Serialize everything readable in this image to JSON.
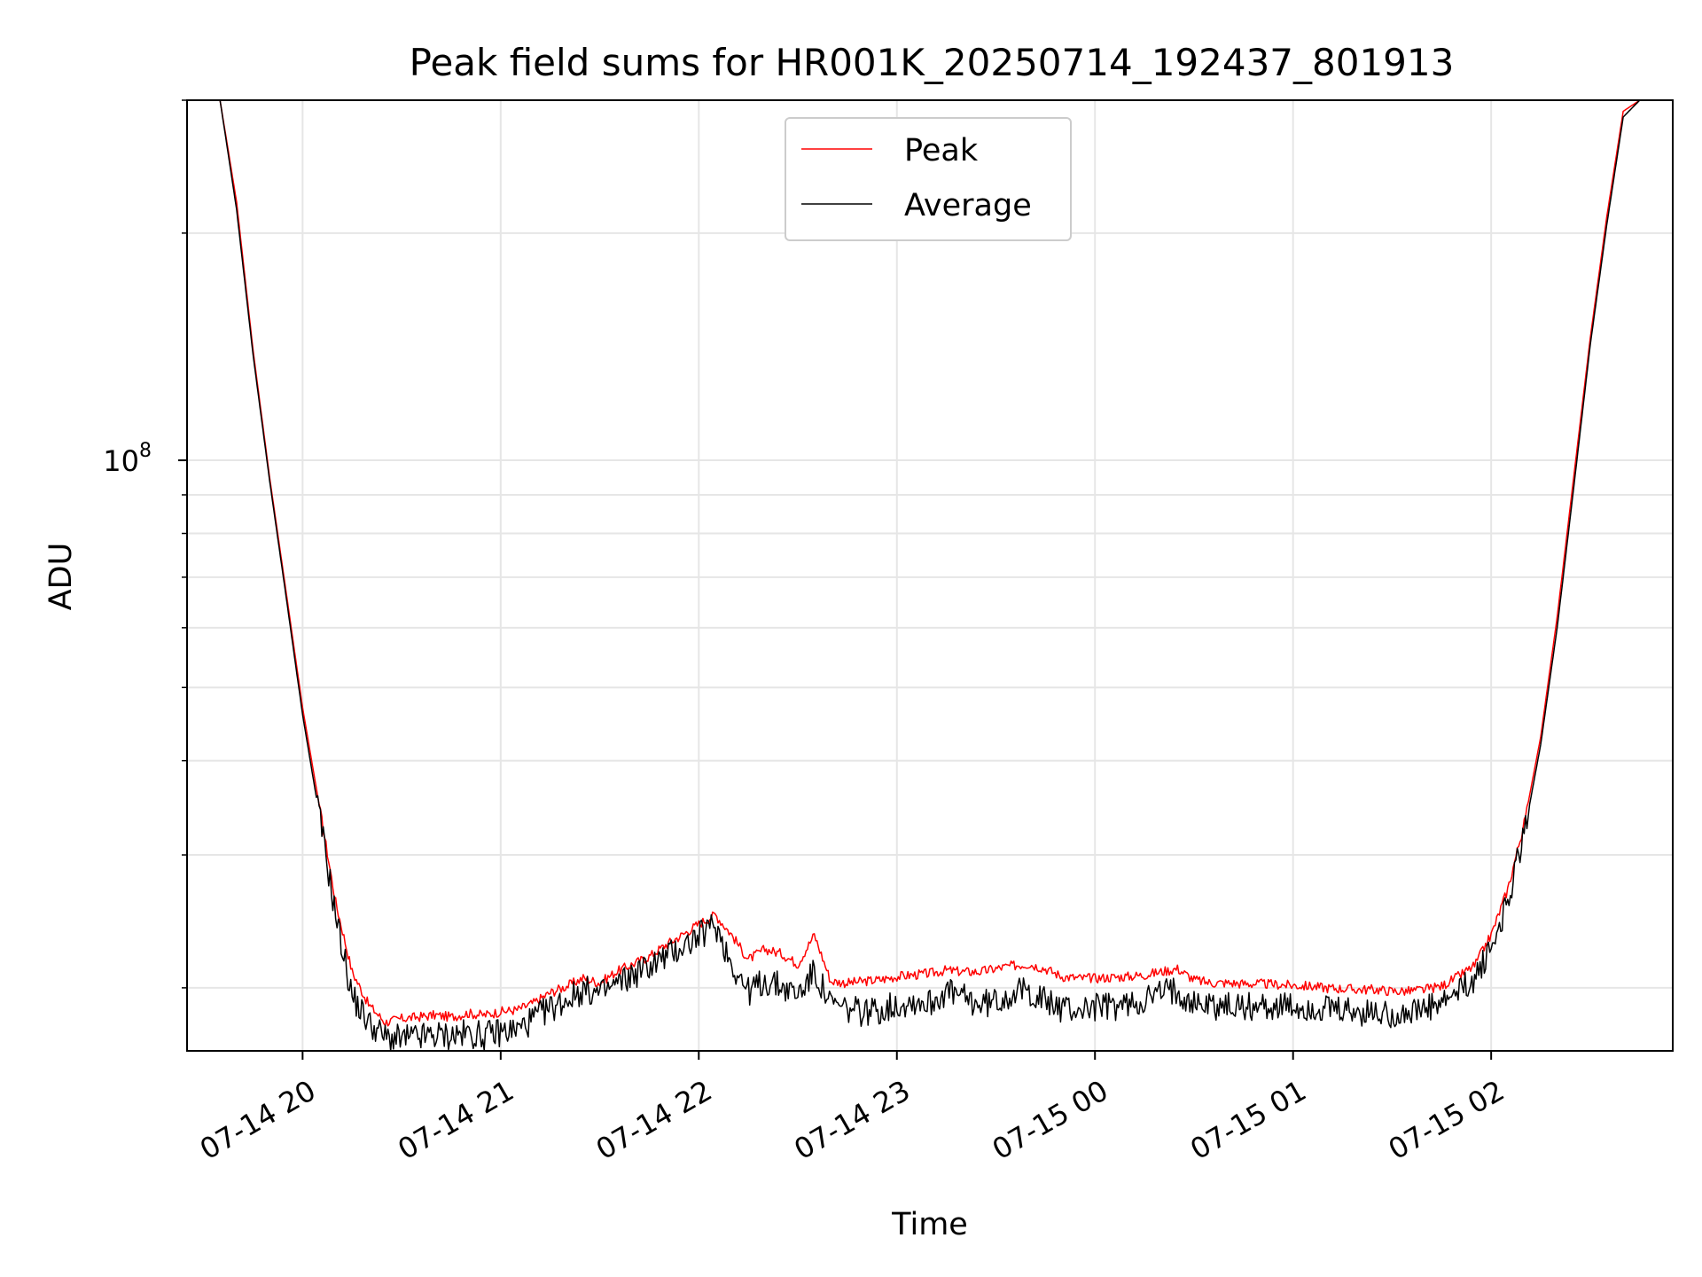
{
  "chart_data": {
    "type": "line",
    "title": "Peak field sums for HR001K_20250714_192437_801913",
    "xlabel": "Time",
    "ylabel": "ADU",
    "x_ticks": [
      "07-14 20",
      "07-14 21",
      "07-14 22",
      "07-14 23",
      "07-15 00",
      "07-15 01",
      "07-15 02"
    ],
    "x_range": [
      "07-14 19:25",
      "07-15 02:55"
    ],
    "y_scale": "log",
    "ylim": [
      16500000,
      300000000
    ],
    "y_major_tick": {
      "label_base": "10",
      "label_exp": "8"
    },
    "grid": true,
    "legend": {
      "placement": "upper center",
      "entries": [
        "Peak",
        "Average"
      ]
    },
    "colors": {
      "Peak": "#ff0000",
      "Average": "#000000"
    },
    "x": [
      "07-14 19:25",
      "07-14 19:30",
      "07-14 19:35",
      "07-14 19:40",
      "07-14 19:45",
      "07-14 19:50",
      "07-14 19:55",
      "07-14 20:00",
      "07-14 20:05",
      "07-14 20:10",
      "07-14 20:15",
      "07-14 20:20",
      "07-14 20:25",
      "07-14 20:30",
      "07-14 20:35",
      "07-14 20:40",
      "07-14 20:45",
      "07-14 20:50",
      "07-14 20:55",
      "07-14 21:00",
      "07-14 21:05",
      "07-14 21:10",
      "07-14 21:15",
      "07-14 21:20",
      "07-14 21:25",
      "07-14 21:30",
      "07-14 21:35",
      "07-14 21:40",
      "07-14 21:45",
      "07-14 21:50",
      "07-14 21:55",
      "07-14 22:00",
      "07-14 22:05",
      "07-14 22:10",
      "07-14 22:15",
      "07-14 22:20",
      "07-14 22:25",
      "07-14 22:30",
      "07-14 22:35",
      "07-14 22:40",
      "07-14 22:45",
      "07-14 22:50",
      "07-14 22:55",
      "07-14 23:00",
      "07-14 23:05",
      "07-14 23:10",
      "07-14 23:15",
      "07-14 23:20",
      "07-14 23:25",
      "07-14 23:30",
      "07-14 23:35",
      "07-14 23:40",
      "07-14 23:45",
      "07-14 23:50",
      "07-14 23:55",
      "07-15 00:00",
      "07-15 00:05",
      "07-15 00:10",
      "07-15 00:15",
      "07-15 00:20",
      "07-15 00:25",
      "07-15 00:30",
      "07-15 00:35",
      "07-15 00:40",
      "07-15 00:45",
      "07-15 00:50",
      "07-15 00:55",
      "07-15 01:00",
      "07-15 01:05",
      "07-15 01:10",
      "07-15 01:15",
      "07-15 01:20",
      "07-15 01:25",
      "07-15 01:30",
      "07-15 01:35",
      "07-15 01:40",
      "07-15 01:45",
      "07-15 01:50",
      "07-15 01:55",
      "07-15 02:00",
      "07-15 02:05",
      "07-15 02:10",
      "07-15 02:15",
      "07-15 02:20",
      "07-15 02:25",
      "07-15 02:30",
      "07-15 02:35",
      "07-15 02:40",
      "07-15 02:45"
    ],
    "series": [
      {
        "name": "Peak",
        "values": [
          300000000,
          300000000,
          300000000,
          220000000,
          140000000,
          95000000,
          67000000,
          47000000,
          35000000,
          26000000,
          21000000,
          19000000,
          18000000,
          18200000,
          18300000,
          18400000,
          18300000,
          18500000,
          18400000,
          18600000,
          18700000,
          19100000,
          19700000,
          20100000,
          20600000,
          20300000,
          21000000,
          21500000,
          22000000,
          22800000,
          23500000,
          24300000,
          25000000,
          23500000,
          21800000,
          22500000,
          22200000,
          21500000,
          23500000,
          20400000,
          20300000,
          20400000,
          20500000,
          20700000,
          20800000,
          20900000,
          21100000,
          21000000,
          21000000,
          21200000,
          21400000,
          21500000,
          21200000,
          20700000,
          20600000,
          20600000,
          20650000,
          20700000,
          20800000,
          21000000,
          21200000,
          20500000,
          20300000,
          20300000,
          20250000,
          20250000,
          20200000,
          20150000,
          20100000,
          20000000,
          19950000,
          19900000,
          19900000,
          19800000,
          19800000,
          19900000,
          20100000,
          20700000,
          21400000,
          23500000,
          27000000,
          33000000,
          43000000,
          62000000,
          95000000,
          145000000,
          210000000,
          290000000,
          300000000
        ]
      },
      {
        "name": "Average",
        "values": [
          300000000,
          300000000,
          300000000,
          215000000,
          138000000,
          94000000,
          66000000,
          46000000,
          34000000,
          25000000,
          19500000,
          18000000,
          17200000,
          17100000,
          17200000,
          17300000,
          17300000,
          17400000,
          17300000,
          17500000,
          17600000,
          18200000,
          18800000,
          19300000,
          19900000,
          19600000,
          20200000,
          20800000,
          21400000,
          22000000,
          22700000,
          23400000,
          24300000,
          21500000,
          19800000,
          20400000,
          20100000,
          19600000,
          21000000,
          19000000,
          18700000,
          18600000,
          18700000,
          19000000,
          19200000,
          19100000,
          19800000,
          19400000,
          19000000,
          19200000,
          19700000,
          19800000,
          19200000,
          18800000,
          18700000,
          18900000,
          18900000,
          19000000,
          19300000,
          19700000,
          19900000,
          19100000,
          19000000,
          18900000,
          18900000,
          18900000,
          18900000,
          18800000,
          18800000,
          18700000,
          18600000,
          18500000,
          18500000,
          18500000,
          18500000,
          18700000,
          19000000,
          19700000,
          20600000,
          22500000,
          26000000,
          32000000,
          42000000,
          60000000,
          92000000,
          142000000,
          205000000,
          285000000,
          300000000
        ]
      }
    ]
  }
}
